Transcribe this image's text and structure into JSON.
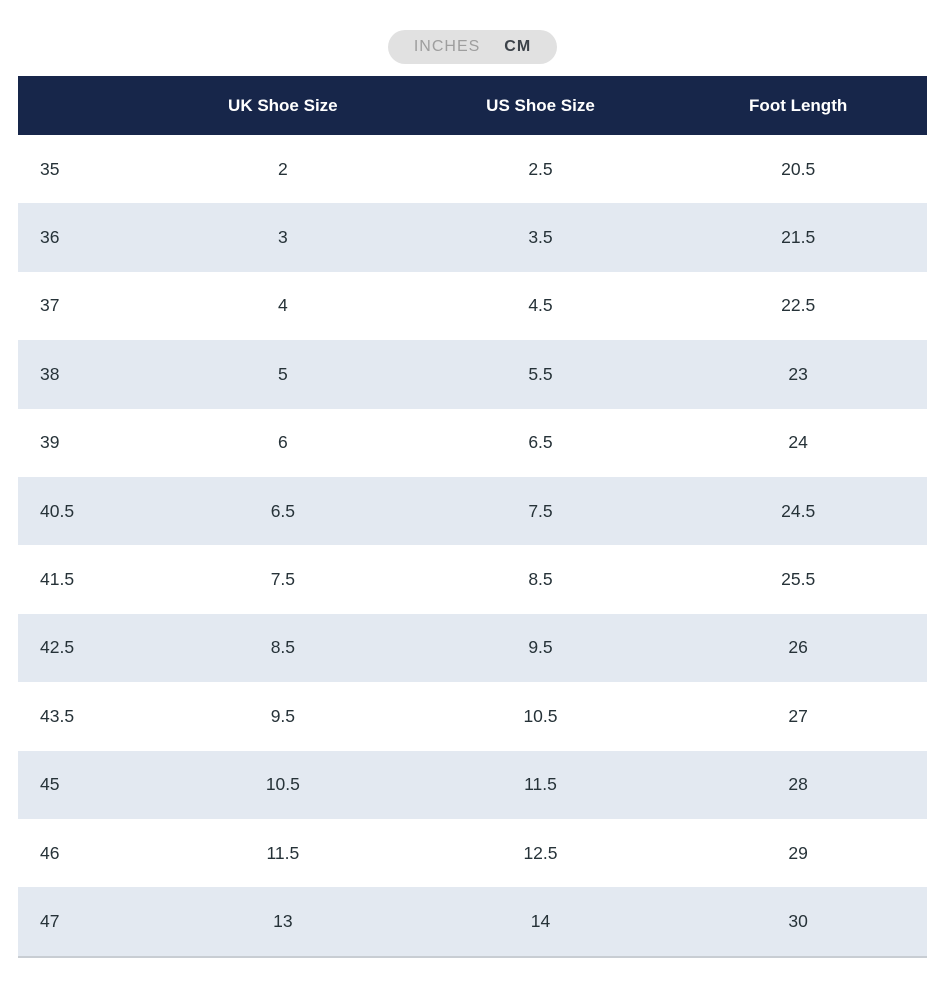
{
  "unit_toggle": {
    "options": [
      {
        "label": "INCHES",
        "selected": false
      },
      {
        "label": "CM",
        "selected": true
      }
    ]
  },
  "table": {
    "columns": [
      "",
      "UK Shoe Size",
      "US Shoe Size",
      "Foot Length"
    ],
    "rows": [
      [
        "35",
        "2",
        "2.5",
        "20.5"
      ],
      [
        "36",
        "3",
        "3.5",
        "21.5"
      ],
      [
        "37",
        "4",
        "4.5",
        "22.5"
      ],
      [
        "38",
        "5",
        "5.5",
        "23"
      ],
      [
        "39",
        "6",
        "6.5",
        "24"
      ],
      [
        "40.5",
        "6.5",
        "7.5",
        "24.5"
      ],
      [
        "41.5",
        "7.5",
        "8.5",
        "25.5"
      ],
      [
        "42.5",
        "8.5",
        "9.5",
        "26"
      ],
      [
        "43.5",
        "9.5",
        "10.5",
        "27"
      ],
      [
        "45",
        "10.5",
        "11.5",
        "28"
      ],
      [
        "46",
        "11.5",
        "12.5",
        "29"
      ],
      [
        "47",
        "13",
        "14",
        "30"
      ]
    ]
  },
  "colors": {
    "header_bg": "#17264a",
    "header_text": "#ffffff",
    "row_alt_bg": "#e3e9f1",
    "row_text": "#263238",
    "table_bottom_border": "#c8cdd3",
    "toggle_bg": "#e1e1e1",
    "toggle_inactive_text": "#9e9e9e",
    "toggle_active_text": "#3d434a"
  }
}
